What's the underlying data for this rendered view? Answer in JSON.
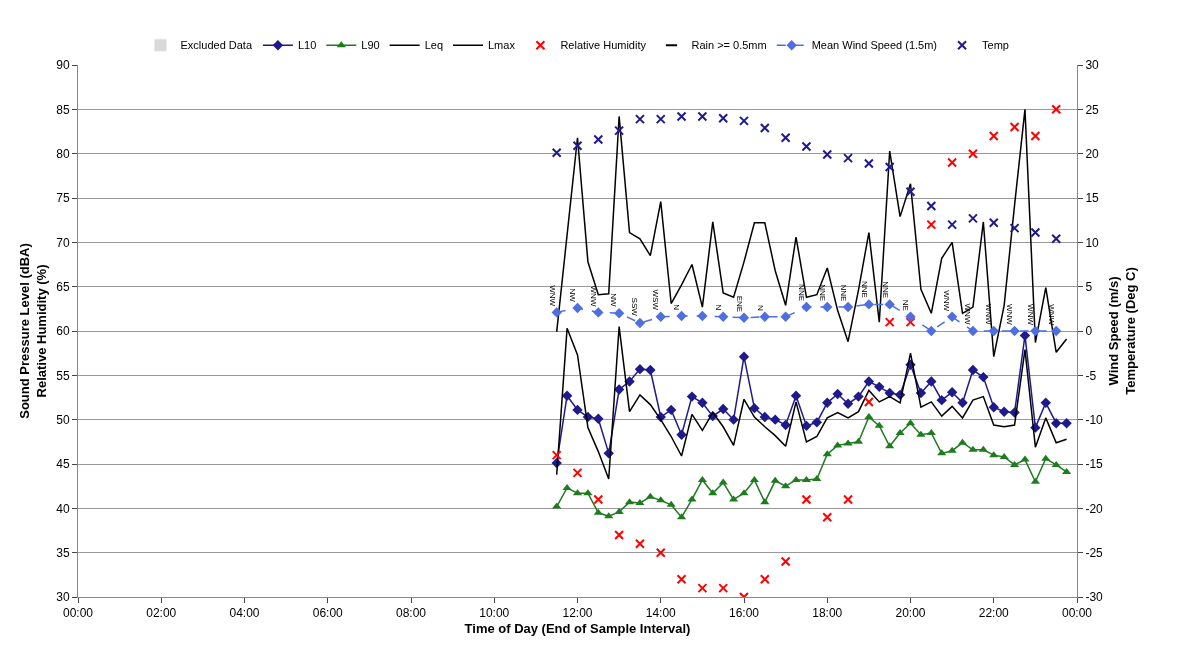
{
  "chart_data": {
    "type": "line",
    "xlabel": "Time of Day (End of Sample Interval)",
    "ylabel": "Sound Pressure Level (dBA)\nRelative Humidity (%)",
    "y2label": "Wind Speed (m/s)\nTemperature (Deg C)",
    "x": [
      11.5,
      11.75,
      12,
      12.25,
      12.5,
      12.75,
      13,
      13.25,
      13.5,
      13.75,
      14,
      14.25,
      14.5,
      14.75,
      15,
      15.25,
      15.5,
      15.75,
      16,
      16.25,
      16.5,
      16.75,
      17,
      17.25,
      17.5,
      17.75,
      18,
      18.25,
      18.5,
      18.75,
      19,
      19.25,
      19.5,
      19.75,
      20,
      20.25,
      20.5,
      20.75,
      21,
      21.25,
      21.5,
      21.75,
      22,
      22.25,
      22.5,
      22.75,
      23,
      23.25,
      23.5,
      23.75
    ],
    "xlim": [
      0,
      24
    ],
    "xticks": [
      {
        "value": 0,
        "label": "00:00"
      },
      {
        "value": 2,
        "label": "02:00"
      },
      {
        "value": 4,
        "label": "04:00"
      },
      {
        "value": 6,
        "label": "06:00"
      },
      {
        "value": 8,
        "label": "08:00"
      },
      {
        "value": 10,
        "label": "10:00"
      },
      {
        "value": 12,
        "label": "12:00"
      },
      {
        "value": 14,
        "label": "14:00"
      },
      {
        "value": 16,
        "label": "16:00"
      },
      {
        "value": 18,
        "label": "18:00"
      },
      {
        "value": 20,
        "label": "20:00"
      },
      {
        "value": 22,
        "label": "22:00"
      },
      {
        "value": 24,
        "label": "00:00"
      }
    ],
    "ylim": [
      30,
      90
    ],
    "yticks": [
      30,
      35,
      40,
      45,
      50,
      55,
      60,
      65,
      70,
      75,
      80,
      85,
      90
    ],
    "y2lim": [
      -30,
      30
    ],
    "y2ticks": [
      -30,
      -25,
      -20,
      -15,
      -10,
      -5,
      0,
      5,
      10,
      15,
      20,
      25,
      30
    ],
    "grid": "y",
    "legend": "top",
    "series": [
      {
        "name": "Excluded Data",
        "type": "bar",
        "color": "#d9d9d9",
        "values": [
          null,
          null,
          null,
          null,
          null,
          null,
          null,
          null,
          null,
          null,
          null,
          null,
          null,
          null,
          null,
          null,
          null,
          null,
          null,
          null,
          null,
          null,
          null,
          null,
          null,
          null,
          null,
          null,
          null,
          null,
          null,
          null,
          null,
          null,
          null,
          null,
          null,
          null,
          null,
          null,
          null,
          null,
          null,
          null,
          null,
          null,
          null,
          null,
          null,
          null
        ]
      },
      {
        "name": "L10",
        "color": "#1f1a8c",
        "marker": "diamond",
        "values": [
          45.1,
          52.7,
          51.1,
          50.3,
          50.1,
          46.2,
          53.4,
          54.3,
          55.7,
          55.6,
          50.3,
          51.1,
          48.3,
          52.6,
          51.9,
          50.4,
          51.2,
          50.0,
          57.1,
          51.3,
          50.3,
          50.0,
          49.4,
          52.7,
          49.3,
          49.7,
          51.9,
          52.9,
          51.8,
          52.6,
          54.3,
          53.7,
          53.0,
          52.8,
          56.2,
          53.0,
          54.3,
          52.2,
          53.1,
          51.9,
          55.6,
          54.8,
          51.4,
          50.9,
          50.8,
          59.5,
          49.1,
          51.9,
          49.6,
          49.6
        ]
      },
      {
        "name": "L90",
        "color": "#1e7b1e",
        "marker": "triangle",
        "values": [
          40.2,
          42.3,
          41.7,
          41.7,
          39.5,
          39.1,
          39.6,
          40.7,
          40.6,
          41.3,
          40.9,
          40.4,
          39.0,
          41.0,
          43.2,
          41.7,
          42.9,
          41.0,
          41.7,
          43.2,
          40.7,
          43.1,
          42.5,
          43.2,
          43.2,
          43.3,
          46.1,
          47.1,
          47.3,
          47.5,
          50.3,
          49.3,
          47.0,
          48.5,
          49.6,
          48.3,
          48.5,
          46.2,
          46.5,
          47.4,
          46.6,
          46.6,
          46.0,
          45.8,
          44.9,
          45.5,
          43.0,
          45.6,
          44.9,
          44.1
        ]
      },
      {
        "name": "Leq",
        "color": "#000000",
        "marker": "none",
        "values": [
          43.8,
          60.3,
          57.3,
          49.1,
          46.4,
          43.3,
          60.5,
          50.9,
          52.8,
          51.7,
          50.0,
          48.1,
          45.9,
          50.6,
          48.8,
          50.8,
          49.2,
          47.1,
          52.3,
          50.3,
          49.2,
          48.2,
          47.0,
          52.0,
          47.5,
          48.1,
          50.2,
          50.8,
          50.2,
          50.9,
          53.3,
          52.0,
          52.6,
          51.9,
          57.5,
          51.4,
          52.0,
          50.4,
          51.5,
          50.2,
          52.2,
          52.6,
          49.4,
          49.2,
          49.4,
          57.9,
          46.9,
          50.2,
          47.4,
          47.8
        ]
      },
      {
        "name": "Lmax",
        "color": "#000000",
        "marker": "none",
        "values": [
          59.9,
          null,
          81.8,
          67.8,
          64.1,
          64.2,
          84.2,
          71.1,
          70.4,
          68.5,
          74.6,
          63.1,
          65.2,
          67.5,
          62.7,
          72.3,
          64.3,
          63.8,
          67.8,
          72.2,
          72.2,
          66.8,
          62.9,
          70.6,
          63.8,
          64.1,
          67.1,
          62.3,
          58.8,
          64.6,
          71.1,
          61.0,
          80.3,
          72.9,
          76.6,
          64.7,
          62.0,
          68.2,
          70.0,
          62.0,
          62.7,
          72.3,
          57.1,
          62.9,
          74.2,
          85.0,
          58.7,
          64.9,
          57.6,
          59.1
        ]
      },
      {
        "name": "Relative Humidity",
        "type": "scatter",
        "color": "#ff0000",
        "marker": "cross",
        "x": [
          11.5,
          12,
          12.5,
          13,
          13.5,
          14,
          14.5,
          15,
          15.5,
          16,
          16.5,
          17,
          17.5,
          18,
          18.5,
          19,
          19.5,
          20,
          20.5,
          21,
          21.5,
          22,
          22.5,
          23,
          23.5
        ],
        "values": [
          46,
          44,
          41,
          37,
          36,
          35,
          32,
          31,
          31,
          30,
          32,
          34,
          41,
          39,
          41,
          52,
          61,
          61,
          72,
          79,
          80,
          82,
          83,
          82,
          85
        ]
      },
      {
        "name": "Rain >= 0.5mm",
        "type": "scatter",
        "color": "#000000",
        "values": [
          null,
          null,
          null,
          null,
          null,
          null,
          null,
          null,
          null,
          null,
          null,
          null,
          null,
          null,
          null,
          null,
          null,
          null,
          null,
          null,
          null,
          null,
          null,
          null,
          null,
          null,
          null,
          null,
          null,
          null,
          null,
          null,
          null,
          null,
          null,
          null,
          null,
          null,
          null,
          null,
          null,
          null,
          null,
          null,
          null,
          null,
          null,
          null,
          null,
          null
        ]
      },
      {
        "name": "Mean Wind Speed (1.5m)",
        "axis": "y2",
        "color": "#4f6fe0",
        "marker": "diamond",
        "line_style": "dashed",
        "x": [
          11.5,
          12,
          12.5,
          13,
          13.5,
          14,
          14.5,
          15,
          15.5,
          16,
          16.5,
          17,
          17.5,
          18,
          18.5,
          19,
          19.5,
          20,
          20.5,
          21,
          21.5,
          22,
          22.5,
          23,
          23.5
        ],
        "values": [
          2.1,
          2.6,
          2.1,
          2.0,
          0.9,
          1.6,
          1.7,
          1.7,
          1.6,
          1.5,
          1.6,
          1.6,
          2.7,
          2.7,
          2.7,
          3.0,
          3.0,
          1.6,
          0.0,
          1.6,
          0.0,
          0.0,
          0.0,
          0.0,
          0.0
        ],
        "value_labels": [
          "WNW",
          "NW",
          "WNW",
          "NW",
          "SSW",
          "WSW",
          "N",
          null,
          "N",
          "ENE",
          "N",
          null,
          "NNE",
          "NNE",
          "NNE",
          "NNE",
          "NNE",
          "NE",
          null,
          "WNW",
          "WNW",
          "WNW",
          "WNW",
          "WNW",
          "WNW"
        ]
      },
      {
        "name": "Temp",
        "type": "scatter",
        "axis": "y2",
        "color": "#1f1a8c",
        "marker": "cross",
        "x": [
          11.5,
          12,
          12.5,
          13,
          13.5,
          14,
          14.5,
          15,
          15.5,
          16,
          16.5,
          17,
          17.5,
          18,
          18.5,
          19,
          19.5,
          20,
          20.5,
          21,
          21.5,
          22,
          22.5,
          23,
          23.5
        ],
        "values": [
          20.1,
          20.9,
          21.6,
          22.6,
          23.9,
          23.9,
          24.2,
          24.2,
          24.0,
          23.7,
          22.9,
          21.8,
          20.8,
          19.9,
          19.5,
          18.9,
          18.5,
          15.7,
          14.1,
          12.0,
          12.7,
          12.2,
          11.6,
          11.1,
          10.4
        ]
      }
    ]
  }
}
